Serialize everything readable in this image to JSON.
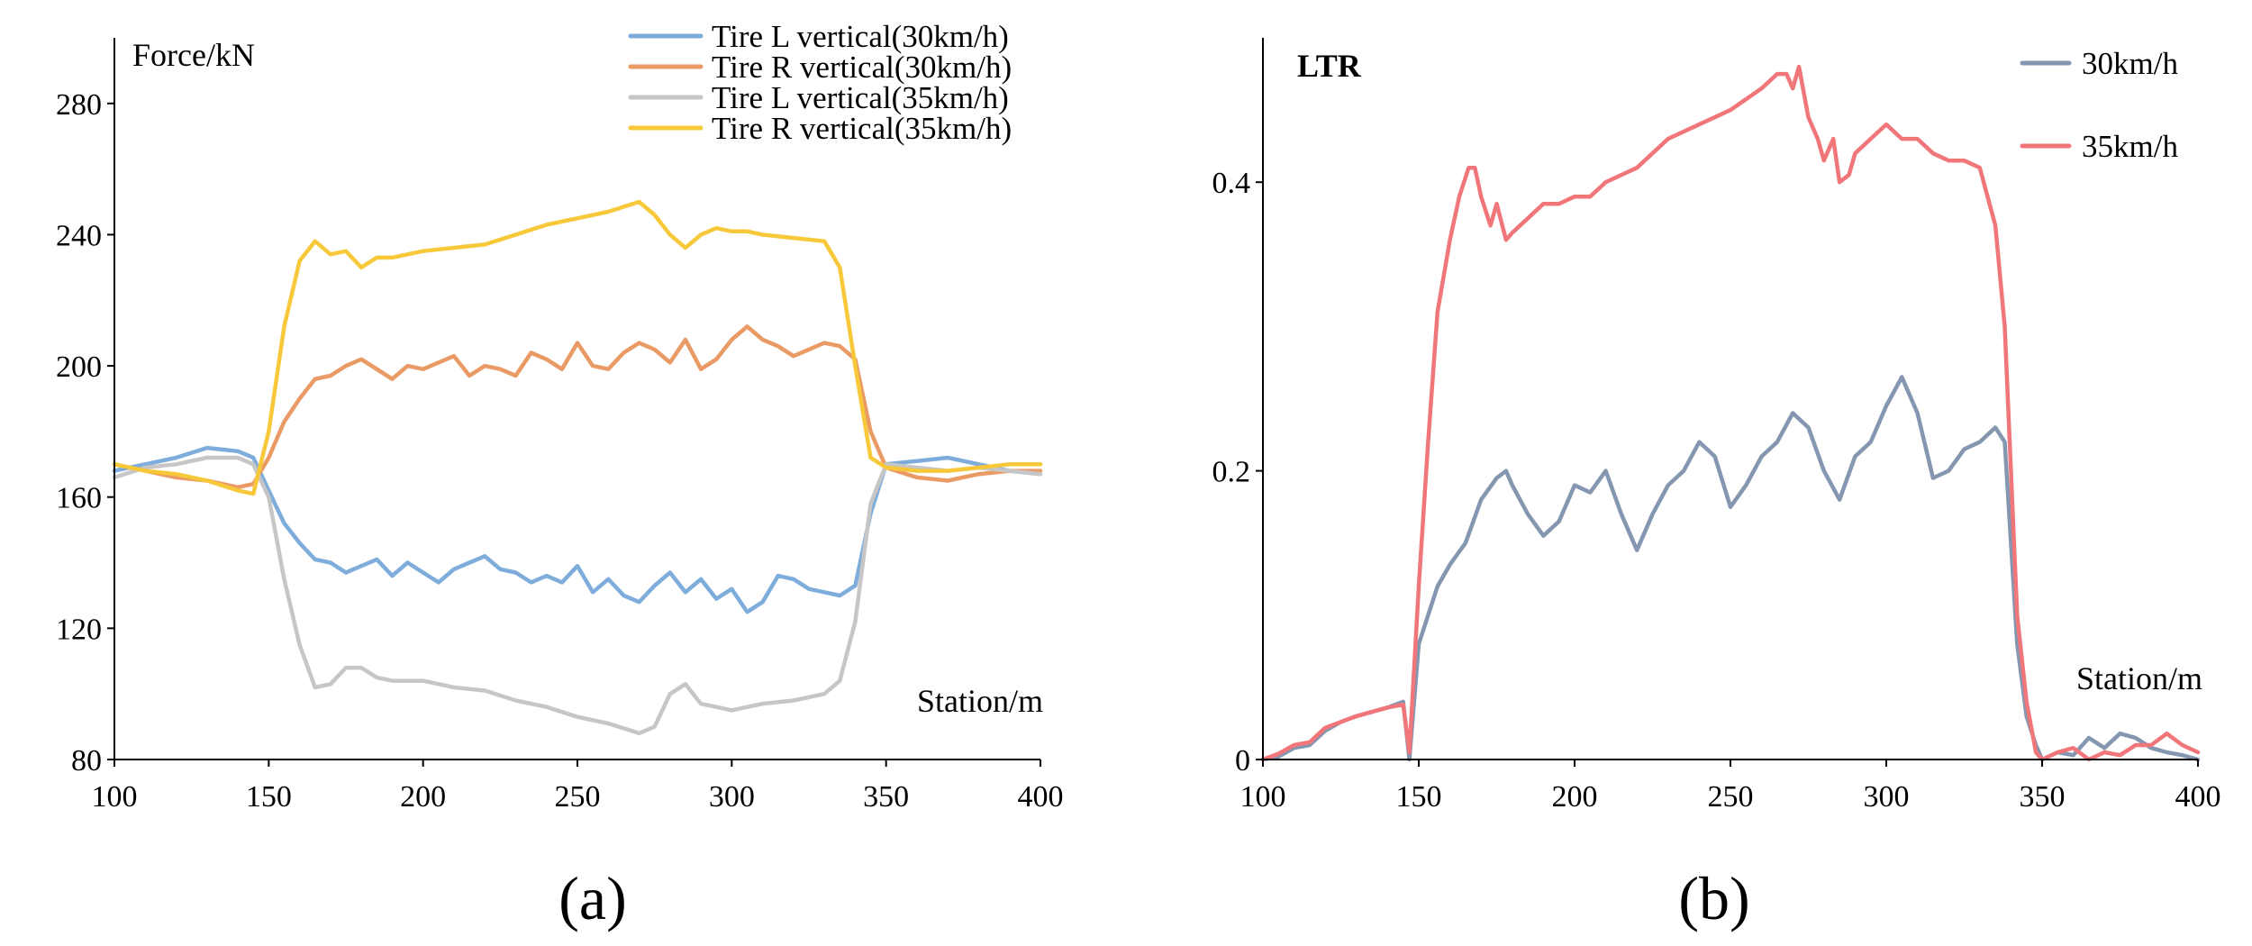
{
  "chart_data": [
    {
      "type": "line",
      "panel_label": "(a)",
      "ylabel": "Force/kN",
      "xlabel": "Station/m",
      "xlim": [
        100,
        400
      ],
      "ylim": [
        80,
        300
      ],
      "xticks": [
        "100",
        "150",
        "200",
        "250",
        "300",
        "350",
        "400"
      ],
      "yticks": [
        "80",
        "120",
        "160",
        "200",
        "240",
        "280"
      ],
      "legend_position": "top-right",
      "series": [
        {
          "name": "Tire L vertical(30km/h)",
          "color": "#7eaddc",
          "x": [
            100,
            110,
            120,
            130,
            140,
            145,
            150,
            155,
            160,
            165,
            170,
            175,
            180,
            185,
            190,
            195,
            200,
            205,
            210,
            215,
            220,
            225,
            230,
            235,
            240,
            245,
            250,
            255,
            260,
            265,
            270,
            275,
            280,
            285,
            290,
            295,
            300,
            305,
            310,
            315,
            320,
            325,
            330,
            335,
            340,
            345,
            350,
            360,
            370,
            380,
            390,
            400
          ],
          "y": [
            168,
            170,
            172,
            175,
            174,
            172,
            162,
            152,
            146,
            141,
            140,
            137,
            139,
            141,
            136,
            140,
            137,
            134,
            138,
            140,
            142,
            138,
            137,
            134,
            136,
            134,
            139,
            131,
            135,
            130,
            128,
            133,
            137,
            131,
            135,
            129,
            132,
            125,
            128,
            136,
            135,
            132,
            131,
            130,
            133,
            155,
            170,
            171,
            172,
            170,
            168,
            167
          ]
        },
        {
          "name": "Tire R vertical(30km/h)",
          "color": "#ea9a64",
          "x": [
            100,
            110,
            120,
            130,
            140,
            145,
            150,
            155,
            160,
            165,
            170,
            175,
            180,
            185,
            190,
            195,
            200,
            205,
            210,
            215,
            220,
            225,
            230,
            235,
            240,
            245,
            250,
            255,
            260,
            265,
            270,
            275,
            280,
            285,
            290,
            295,
            300,
            305,
            310,
            315,
            320,
            325,
            330,
            335,
            340,
            345,
            350,
            360,
            370,
            380,
            390,
            400
          ],
          "y": [
            170,
            168,
            166,
            165,
            163,
            164,
            172,
            183,
            190,
            196,
            197,
            200,
            202,
            199,
            196,
            200,
            199,
            201,
            203,
            197,
            200,
            199,
            197,
            204,
            202,
            199,
            207,
            200,
            199,
            204,
            207,
            205,
            201,
            208,
            199,
            202,
            208,
            212,
            208,
            206,
            203,
            205,
            207,
            206,
            202,
            180,
            169,
            166,
            165,
            167,
            168,
            168
          ]
        },
        {
          "name": "Tire L vertical(35km/h)",
          "color": "#c6c6c6",
          "x": [
            100,
            110,
            120,
            130,
            140,
            145,
            150,
            155,
            160,
            165,
            170,
            175,
            180,
            185,
            190,
            200,
            210,
            220,
            230,
            240,
            250,
            260,
            270,
            275,
            280,
            285,
            290,
            295,
            300,
            305,
            310,
            320,
            330,
            335,
            340,
            345,
            350,
            360,
            370,
            380,
            390,
            400
          ],
          "y": [
            166,
            169,
            170,
            172,
            172,
            170,
            160,
            135,
            115,
            102,
            103,
            108,
            108,
            105,
            104,
            104,
            102,
            101,
            98,
            96,
            93,
            91,
            88,
            90,
            100,
            103,
            97,
            96,
            95,
            96,
            97,
            98,
            100,
            104,
            122,
            158,
            170,
            169,
            168,
            169,
            168,
            167
          ]
        },
        {
          "name": "Tire R vertical(35km/h)",
          "color": "#f7c93a",
          "x": [
            100,
            110,
            120,
            130,
            140,
            145,
            150,
            155,
            160,
            165,
            170,
            175,
            180,
            185,
            190,
            200,
            210,
            220,
            230,
            240,
            250,
            260,
            270,
            275,
            280,
            285,
            290,
            295,
            300,
            305,
            310,
            320,
            330,
            335,
            340,
            345,
            350,
            360,
            370,
            380,
            390,
            400
          ],
          "y": [
            170,
            168,
            167,
            165,
            162,
            161,
            180,
            212,
            232,
            238,
            234,
            235,
            230,
            233,
            233,
            235,
            236,
            237,
            240,
            243,
            245,
            247,
            250,
            246,
            240,
            236,
            240,
            242,
            241,
            241,
            240,
            239,
            238,
            230,
            200,
            172,
            169,
            168,
            168,
            169,
            170,
            170
          ]
        }
      ]
    },
    {
      "type": "line",
      "panel_label": "(b)",
      "ylabel": "LTR",
      "xlabel": "Station/m",
      "xlim": [
        100,
        400
      ],
      "ylim": [
        0,
        0.5
      ],
      "xticks": [
        "100",
        "150",
        "200",
        "250",
        "300",
        "350",
        "400"
      ],
      "yticks": [
        "0",
        "0.2",
        "0.4"
      ],
      "legend_position": "top-right",
      "series": [
        {
          "name": "30km/h",
          "color": "#8597b0",
          "x": [
            100,
            105,
            110,
            115,
            120,
            125,
            130,
            135,
            140,
            145,
            147,
            150,
            153,
            156,
            160,
            165,
            170,
            175,
            178,
            180,
            185,
            190,
            195,
            200,
            205,
            210,
            215,
            220,
            225,
            230,
            235,
            240,
            245,
            250,
            255,
            260,
            265,
            270,
            275,
            280,
            285,
            290,
            295,
            300,
            305,
            310,
            315,
            320,
            325,
            330,
            335,
            338,
            340,
            342,
            345,
            348,
            350,
            355,
            360,
            365,
            370,
            375,
            380,
            385,
            390,
            395,
            400
          ],
          "y": [
            0,
            0.002,
            0.008,
            0.01,
            0.02,
            0.026,
            0.03,
            0.033,
            0.036,
            0.04,
            0,
            0.08,
            0.1,
            0.12,
            0.135,
            0.15,
            0.18,
            0.195,
            0.2,
            0.19,
            0.17,
            0.155,
            0.165,
            0.19,
            0.185,
            0.2,
            0.17,
            0.145,
            0.17,
            0.19,
            0.2,
            0.22,
            0.21,
            0.175,
            0.19,
            0.21,
            0.22,
            0.24,
            0.23,
            0.2,
            0.18,
            0.21,
            0.22,
            0.245,
            0.265,
            0.24,
            0.195,
            0.2,
            0.215,
            0.22,
            0.23,
            0.22,
            0.15,
            0.08,
            0.03,
            0.01,
            0,
            0.005,
            0.003,
            0.015,
            0.008,
            0.018,
            0.015,
            0.008,
            0.005,
            0.003,
            0
          ]
        },
        {
          "name": "35km/h",
          "color": "#f0767a",
          "x": [
            100,
            105,
            110,
            115,
            120,
            125,
            130,
            135,
            140,
            145,
            147,
            150,
            153,
            156,
            160,
            163,
            166,
            168,
            170,
            173,
            175,
            178,
            180,
            185,
            190,
            195,
            200,
            205,
            210,
            215,
            220,
            225,
            230,
            240,
            250,
            260,
            265,
            268,
            270,
            272,
            275,
            278,
            280,
            283,
            285,
            288,
            290,
            295,
            300,
            305,
            310,
            315,
            320,
            325,
            330,
            335,
            338,
            340,
            342,
            345,
            348,
            350,
            355,
            360,
            365,
            370,
            375,
            380,
            385,
            390,
            395,
            400
          ],
          "y": [
            0,
            0.004,
            0.01,
            0.012,
            0.022,
            0.026,
            0.03,
            0.033,
            0.036,
            0.038,
            0.005,
            0.12,
            0.22,
            0.31,
            0.36,
            0.39,
            0.41,
            0.41,
            0.39,
            0.37,
            0.385,
            0.36,
            0.365,
            0.375,
            0.385,
            0.385,
            0.39,
            0.39,
            0.4,
            0.405,
            0.41,
            0.42,
            0.43,
            0.44,
            0.45,
            0.465,
            0.475,
            0.475,
            0.465,
            0.48,
            0.445,
            0.43,
            0.415,
            0.43,
            0.4,
            0.405,
            0.42,
            0.43,
            0.44,
            0.43,
            0.43,
            0.42,
            0.415,
            0.415,
            0.41,
            0.37,
            0.3,
            0.2,
            0.1,
            0.04,
            0.005,
            0,
            0.005,
            0.008,
            0,
            0.005,
            0.003,
            0.01,
            0.01,
            0.018,
            0.01,
            0.005
          ]
        }
      ]
    }
  ]
}
